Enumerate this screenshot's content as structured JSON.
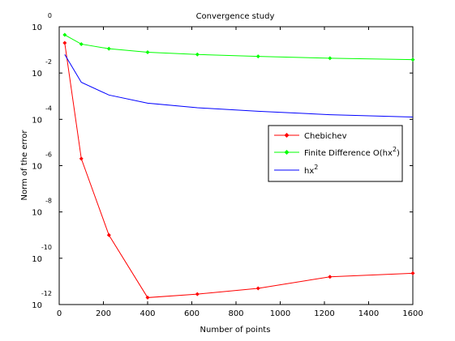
{
  "chart_data": {
    "type": "line",
    "title": "Convergence study",
    "xlabel": "Number of points",
    "ylabel": "Norm of the error",
    "yscale": "log",
    "xlim": [
      0,
      1600
    ],
    "ylim_exponents": [
      -12,
      0
    ],
    "x_ticks": [
      "0",
      "200",
      "400",
      "600",
      "800",
      "1000",
      "1200",
      "1400",
      "1600"
    ],
    "y_tick_base": "10",
    "y_tick_exponents": [
      "0",
      "-2",
      "-4",
      "-6",
      "-8",
      "-10",
      "-12"
    ],
    "grid": false,
    "legend_position": "right",
    "series": [
      {
        "name": "Chebichev",
        "color": "#ff0000",
        "marker": "diamond",
        "points": [
          {
            "x": 25,
            "y": "1e-0.7"
          },
          {
            "x": 100,
            "y": "1e-5.7"
          },
          {
            "x": 225,
            "y": "1e-9.0"
          },
          {
            "x": 400,
            "y": "1e-11.7"
          },
          {
            "x": 625,
            "y": "1e-11.55"
          },
          {
            "x": 900,
            "y": "1e-11.3"
          },
          {
            "x": 1225,
            "y": "1e-10.8"
          },
          {
            "x": 1600,
            "y": "1e-10.65"
          }
        ],
        "x": [
          25,
          100,
          225,
          400,
          625,
          900,
          1225,
          1600
        ],
        "log10_y": [
          -0.7,
          -5.7,
          -9.0,
          -11.7,
          -11.55,
          -11.3,
          -10.8,
          -10.65
        ]
      },
      {
        "name_prefix": "Finite Difference O(hx",
        "name_sup": "2",
        "name_suffix": ")",
        "color": "#00ff00",
        "marker": "diamond",
        "x": [
          25,
          100,
          225,
          400,
          625,
          900,
          1225,
          1600
        ],
        "log10_y": [
          -0.35,
          -0.75,
          -0.95,
          -1.1,
          -1.2,
          -1.28,
          -1.36,
          -1.42
        ]
      },
      {
        "name_prefix": "hx",
        "name_sup": "2",
        "color": "#0000ff",
        "marker": "none",
        "x": [
          25,
          100,
          225,
          400,
          625,
          900,
          1225,
          1600
        ],
        "log10_y": [
          -1.2,
          -2.4,
          -2.95,
          -3.3,
          -3.5,
          -3.65,
          -3.8,
          -3.9
        ]
      }
    ]
  }
}
